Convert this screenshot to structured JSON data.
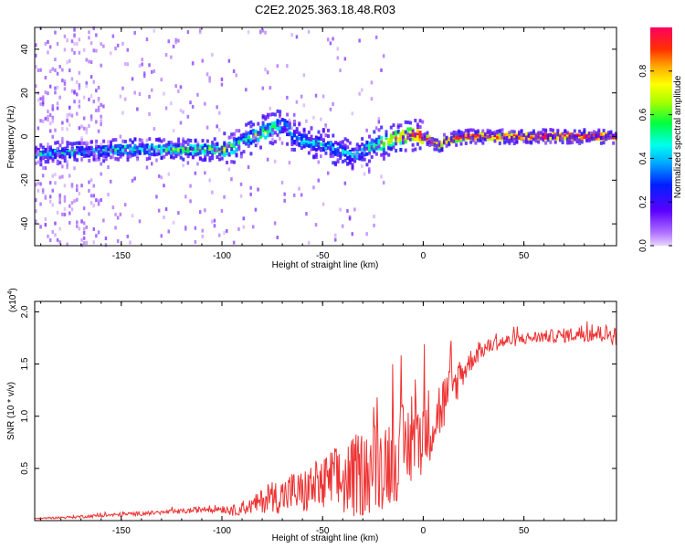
{
  "title": "C2E2.2025.363.18.48.R03",
  "colorbar": {
    "label": "Normalized spectral amplitude",
    "ticks": [
      "0.0",
      "0.2",
      "0.4",
      "0.6",
      "0.8"
    ],
    "tick_values": [
      0.0,
      0.2,
      0.4,
      0.6,
      0.8
    ],
    "range": [
      0,
      1
    ]
  },
  "chart_data": [
    {
      "type": "heatmap",
      "xlabel": "Height of straight line (km)",
      "ylabel": "Frequency (Hz)",
      "xlim": [
        -193,
        96
      ],
      "ylim": [
        -50,
        50
      ],
      "xticks": [
        -150,
        -100,
        -50,
        0,
        50
      ],
      "yticks": [
        -40,
        -20,
        0,
        20,
        40
      ],
      "xtick_labels": [
        "-150",
        "-100",
        "-50",
        "0",
        "50"
      ],
      "ytick_labels": [
        "-40",
        "-20",
        "0",
        "20",
        "40"
      ],
      "ridge": {
        "x": [
          -190,
          -170,
          -150,
          -130,
          -110,
          -100,
          -95,
          -90,
          -85,
          -80,
          -75,
          -70,
          -67,
          -65,
          -60,
          -55,
          -50,
          -45,
          -40,
          -35,
          -30,
          -25,
          -20,
          -15,
          -10,
          -5,
          0,
          5,
          8,
          10,
          20,
          40,
          60,
          80,
          94
        ],
        "freq": [
          -8,
          -7,
          -6,
          -6,
          -6,
          -6,
          -5,
          -2,
          0,
          2,
          4,
          5,
          3,
          0,
          -2,
          -3,
          -4,
          -5,
          -7,
          -9,
          -6,
          -4,
          -3,
          -1,
          0,
          1,
          0,
          -3,
          -4,
          -2,
          0,
          0,
          0,
          0,
          0
        ],
        "amplitude": [
          0.45,
          0.5,
          0.55,
          0.6,
          0.65,
          0.7,
          0.6,
          0.55,
          0.6,
          0.65,
          0.6,
          0.5,
          0.45,
          0.4,
          0.45,
          0.5,
          0.45,
          0.45,
          0.4,
          0.45,
          0.5,
          0.6,
          0.7,
          0.8,
          0.85,
          0.9,
          1.0,
          0.95,
          0.9,
          0.95,
          0.95,
          0.98,
          1.0,
          1.0,
          1.0
        ]
      },
      "colorscale": [
        "#ff00ff",
        "#8000ff",
        "#0000ff",
        "#00ffff",
        "#00ff00",
        "#ffff00",
        "#ff8000",
        "#ff0000"
      ]
    },
    {
      "type": "line",
      "xlabel": "Height of straight line (km)",
      "ylabel": "SNR (10 * v/v)",
      "yscale_label": "(x10",
      "yscale_exp": "4",
      "yscale_close": ")",
      "xlim": [
        -193,
        96
      ],
      "ylim": [
        0,
        2.1
      ],
      "xticks": [
        -150,
        -100,
        -50,
        0,
        50
      ],
      "yticks": [
        0.5,
        1.0,
        1.5,
        2.0
      ],
      "xtick_labels": [
        "-150",
        "-100",
        "-50",
        "0",
        "50"
      ],
      "ytick_labels": [
        "0.5",
        "1.0",
        "1.5",
        "2.0"
      ],
      "series": [
        {
          "color": "#ee3333",
          "x": [
            -193,
            -180,
            -170,
            -160,
            -150,
            -140,
            -130,
            -120,
            -110,
            -100,
            -95,
            -90,
            -85,
            -80,
            -75,
            -70,
            -65,
            -60,
            -55,
            -50,
            -45,
            -40,
            -35,
            -30,
            -25,
            -20,
            -15,
            -10,
            -5,
            0,
            5,
            10,
            15,
            20,
            25,
            30,
            35,
            40,
            50,
            60,
            70,
            80,
            90,
            96
          ],
          "y": [
            0.02,
            0.03,
            0.04,
            0.05,
            0.06,
            0.07,
            0.08,
            0.09,
            0.11,
            0.12,
            0.1,
            0.12,
            0.15,
            0.2,
            0.25,
            0.25,
            0.3,
            0.28,
            0.35,
            0.35,
            0.42,
            0.4,
            0.45,
            0.5,
            0.55,
            0.6,
            0.65,
            0.72,
            0.8,
            0.9,
            1.0,
            1.15,
            1.3,
            1.45,
            1.58,
            1.65,
            1.7,
            1.72,
            1.75,
            1.77,
            1.78,
            1.8,
            1.8,
            1.78
          ],
          "noise": [
            0.005,
            0.01,
            0.015,
            0.015,
            0.02,
            0.02,
            0.02,
            0.025,
            0.03,
            0.04,
            0.05,
            0.06,
            0.08,
            0.12,
            0.15,
            0.18,
            0.2,
            0.22,
            0.25,
            0.28,
            0.32,
            0.35,
            0.4,
            0.42,
            0.45,
            0.45,
            0.45,
            0.45,
            0.42,
            0.4,
            0.35,
            0.3,
            0.22,
            0.15,
            0.1,
            0.08,
            0.07,
            0.07,
            0.06,
            0.06,
            0.07,
            0.08,
            0.09,
            0.1
          ]
        }
      ]
    }
  ]
}
